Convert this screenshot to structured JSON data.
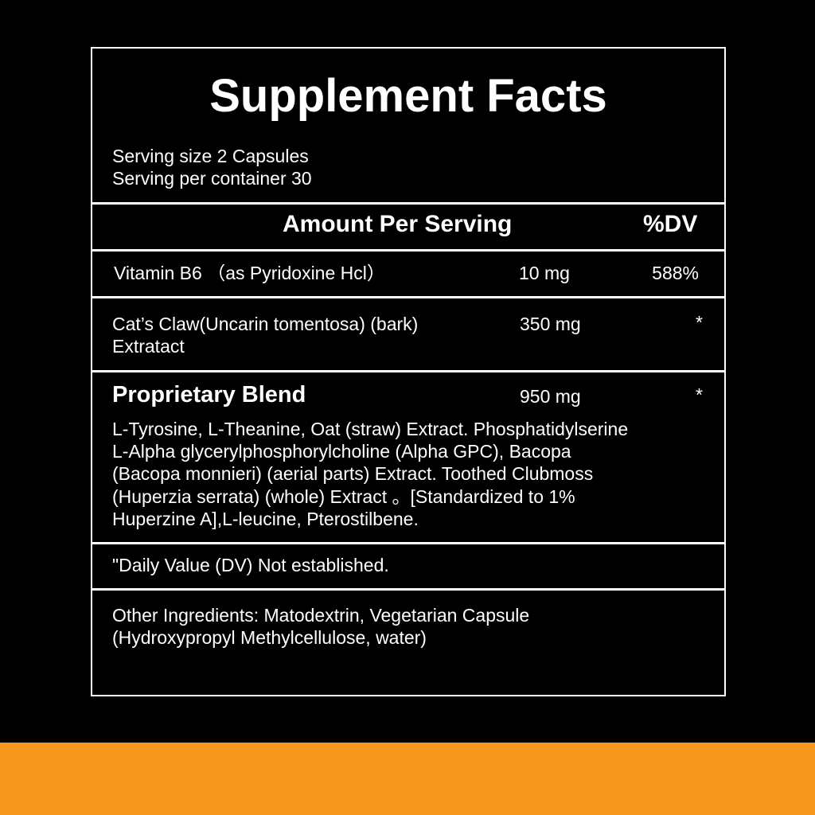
{
  "title": "Supplement Facts",
  "serving_size": "Serving size 2 Capsules",
  "servings_per_container": "Serving per container 30",
  "header": {
    "amount": "Amount Per Serving",
    "dv": "%DV"
  },
  "rows": [
    {
      "name": "Vitamin B6 （as Pyridoxine Hcl）",
      "amount": "10 mg",
      "dv": "588%"
    },
    {
      "name_lines": [
        "Cat’s Claw(Uncarin tomentosa) (bark)",
        "Extratact"
      ],
      "amount": "350 mg",
      "dv": "*"
    },
    {
      "name": "Proprietary Blend",
      "amount": "950 mg",
      "dv": "*",
      "ingredients_lines": [
        "L-Tyrosine, L-Theanine, Oat (straw) Extract. Phosphatidylserine",
        "L-Alpha glycerylphosphorylcholine (Alpha GPC), Bacopa",
        "(Bacopa monnieri) (aerial parts) Extract. Toothed Clubmoss",
        "(Huperzia serrata) (whole) Extract 。[Standardized to 1%",
        "Huperzine A],L-leucine, Pterostilbene."
      ]
    }
  ],
  "footnote": "\"Daily Value (DV) Not established.",
  "other_ingredients_lines": [
    "Other Ingredients: Matodextrin, Vegetarian Capsule",
    "(Hydroxypropyl Methylcellulose, water)"
  ],
  "colors": {
    "background": "#000000",
    "text": "#ffffff",
    "accent_bar": "#F7961C"
  }
}
